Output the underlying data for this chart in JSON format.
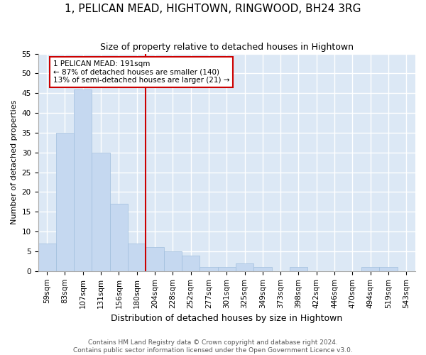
{
  "title": "1, PELICAN MEAD, HIGHTOWN, RINGWOOD, BH24 3RG",
  "subtitle": "Size of property relative to detached houses in Hightown",
  "xlabel": "Distribution of detached houses by size in Hightown",
  "ylabel": "Number of detached properties",
  "categories": [
    "59sqm",
    "83sqm",
    "107sqm",
    "131sqm",
    "156sqm",
    "180sqm",
    "204sqm",
    "228sqm",
    "252sqm",
    "277sqm",
    "301sqm",
    "325sqm",
    "349sqm",
    "373sqm",
    "398sqm",
    "422sqm",
    "446sqm",
    "470sqm",
    "494sqm",
    "519sqm",
    "543sqm"
  ],
  "values": [
    7,
    35,
    46,
    30,
    17,
    7,
    6,
    5,
    4,
    1,
    1,
    2,
    1,
    0,
    1,
    0,
    0,
    0,
    1,
    1,
    0
  ],
  "bar_color": "#c5d8f0",
  "bar_edge_color": "#a0bedd",
  "background_color": "#dce8f5",
  "grid_color": "#ffffff",
  "red_line_x": 5.5,
  "annotation_text": "1 PELICAN MEAD: 191sqm\n← 87% of detached houses are smaller (140)\n13% of semi-detached houses are larger (21) →",
  "annotation_box_color": "#ffffff",
  "annotation_box_edge_color": "#cc0000",
  "footer_text": "Contains HM Land Registry data © Crown copyright and database right 2024.\nContains public sector information licensed under the Open Government Licence v3.0.",
  "ylim": [
    0,
    55
  ],
  "yticks": [
    0,
    5,
    10,
    15,
    20,
    25,
    30,
    35,
    40,
    45,
    50,
    55
  ],
  "title_fontsize": 11,
  "subtitle_fontsize": 9,
  "ylabel_fontsize": 8,
  "xlabel_fontsize": 9,
  "tick_fontsize": 7.5,
  "annotation_fontsize": 7.5,
  "footer_fontsize": 6.5
}
